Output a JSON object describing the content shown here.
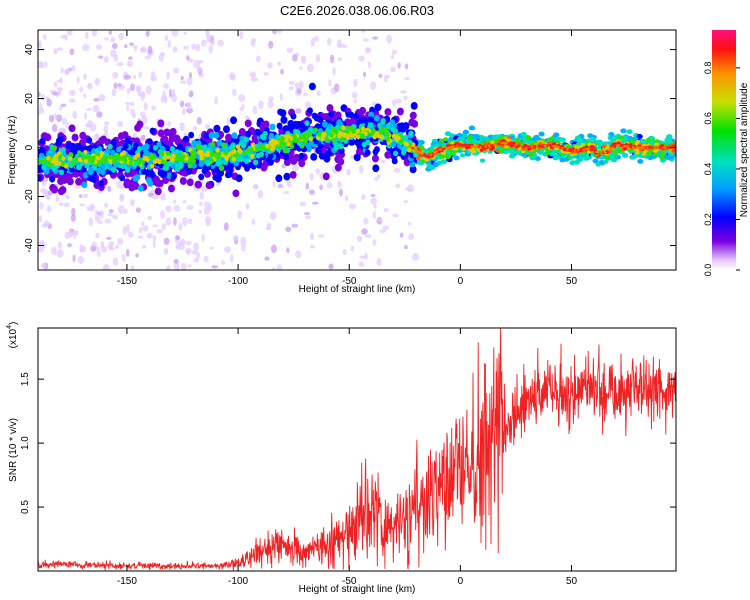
{
  "colors": {
    "series": "#ee2222",
    "axis": "#000000",
    "background": "#ffffff"
  },
  "chart_data": [
    {
      "type": "heatmap",
      "title": "C2E6.2026.038.06.06.R03",
      "xlabel": "Height of straight line (km)",
      "ylabel": "Frequency (Hz)",
      "xlim": [
        -190,
        97
      ],
      "ylim": [
        -50,
        48
      ],
      "x_ticks": [
        -150,
        -100,
        -50,
        0,
        50
      ],
      "y_ticks": [
        -40,
        -20,
        0,
        20,
        40
      ],
      "colorbar": {
        "label": "Normalized spectral amplitude",
        "range": [
          0,
          0.95
        ],
        "ticks": [
          0.0,
          0.2,
          0.4,
          0.6,
          0.8
        ]
      },
      "ridge": {
        "description_points_x": [
          -190,
          -150,
          -100,
          -75,
          -50,
          -35,
          -25,
          -20,
          -15,
          -10,
          0,
          10,
          20,
          30,
          40,
          50,
          55,
          60,
          62,
          65,
          70,
          80,
          90,
          97
        ],
        "description_points_y": [
          -5,
          -5,
          -3,
          4,
          6,
          6,
          2,
          -1,
          -4,
          -1,
          1,
          0,
          2,
          0,
          1,
          -1,
          -1,
          0,
          -3,
          -2,
          1,
          0,
          0,
          0
        ]
      }
    },
    {
      "type": "line",
      "title": "",
      "xlabel": "Height of straight line (km)",
      "ylabel": "SNR (10 * v/v)",
      "scale_label": "(x10^4)",
      "xlim": [
        -190,
        97
      ],
      "ylim": [
        0,
        19000
      ],
      "x_ticks": [
        -150,
        -100,
        -50,
        0,
        50
      ],
      "y_ticks": [
        0.5,
        1.0,
        1.5
      ],
      "y_tick_labels": [
        "0.5",
        "1.0",
        "1.5"
      ],
      "trend": {
        "x": [
          -190,
          -150,
          -110,
          -100,
          -90,
          -80,
          -70,
          -60,
          -50,
          -45,
          -40,
          -35,
          -30,
          -20,
          -10,
          0,
          10,
          20,
          30,
          40,
          50,
          60,
          70,
          80,
          90,
          97
        ],
        "y": [
          500,
          400,
          400,
          600,
          1500,
          2000,
          1500,
          2000,
          3000,
          4000,
          5000,
          3000,
          3500,
          5000,
          6000,
          7000,
          9000,
          11500,
          13000,
          14500,
          14000,
          14500,
          14000,
          14500,
          14000,
          14000
        ]
      }
    }
  ]
}
